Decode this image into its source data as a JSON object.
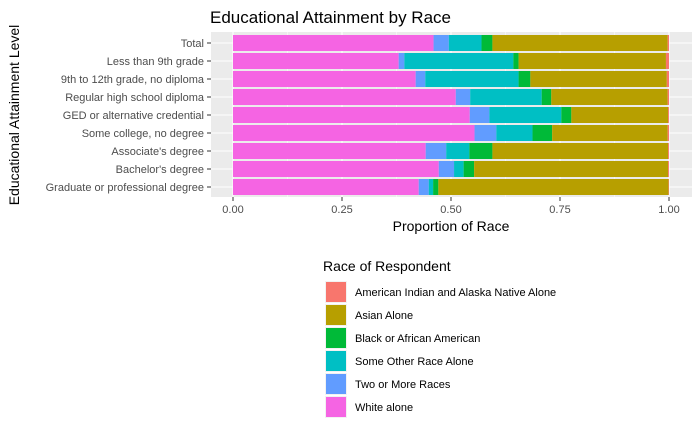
{
  "chart_data": {
    "type": "bar",
    "orientation": "horizontal",
    "stacked": true,
    "normalized": true,
    "title": "Educational Attainment by Race",
    "xlabel": "Proportion of Race",
    "ylabel": "Educational Attainment Level",
    "xlim": [
      0,
      1
    ],
    "x_ticks": [
      "0.00",
      "0.25",
      "0.50",
      "0.75",
      "1.00"
    ],
    "categories": [
      "Total",
      "Less than 9th grade",
      "9th to 12th grade, no diploma",
      "Regular high school diploma",
      "GED or alternative credential",
      "Some college, no degree",
      "Associate's degree",
      "Bachelor's degree",
      "Graduate or professional degree"
    ],
    "stack_order": [
      "White alone",
      "Two or More Races",
      "Some Other Race Alone",
      "Black or African American",
      "Asian Alone",
      "American Indian and Alaska Native Alone"
    ],
    "series": [
      {
        "name": "American Indian and Alaska Native Alone",
        "color": "#F8766D",
        "values": [
          0.003,
          0.007,
          0.005,
          0.003,
          0.002,
          0.003,
          0.002,
          0.002,
          0.001
        ]
      },
      {
        "name": "Asian Alone",
        "color": "#B79F00",
        "values": [
          0.402,
          0.338,
          0.313,
          0.267,
          0.222,
          0.265,
          0.403,
          0.445,
          0.528
        ]
      },
      {
        "name": "Black or African American",
        "color": "#00BA38",
        "values": [
          0.025,
          0.012,
          0.027,
          0.022,
          0.023,
          0.045,
          0.053,
          0.024,
          0.012
        ]
      },
      {
        "name": "Some Other Race Alone",
        "color": "#00BFC4",
        "values": [
          0.075,
          0.25,
          0.214,
          0.164,
          0.165,
          0.083,
          0.053,
          0.022,
          0.01
        ]
      },
      {
        "name": "Two or More Races",
        "color": "#619CFF",
        "values": [
          0.035,
          0.013,
          0.022,
          0.033,
          0.045,
          0.05,
          0.047,
          0.035,
          0.023
        ]
      },
      {
        "name": "White alone",
        "color": "#F564E3",
        "values": [
          0.46,
          0.38,
          0.419,
          0.511,
          0.543,
          0.554,
          0.442,
          0.472,
          0.426
        ]
      }
    ],
    "legend": {
      "title": "Race of Respondent",
      "position": "bottom",
      "order": [
        "American Indian and Alaska Native Alone",
        "Asian Alone",
        "Black or African American",
        "Some Other Race Alone",
        "Two or More Races",
        "White alone"
      ]
    },
    "grid": true,
    "panel_background": "#EBEBEB"
  }
}
